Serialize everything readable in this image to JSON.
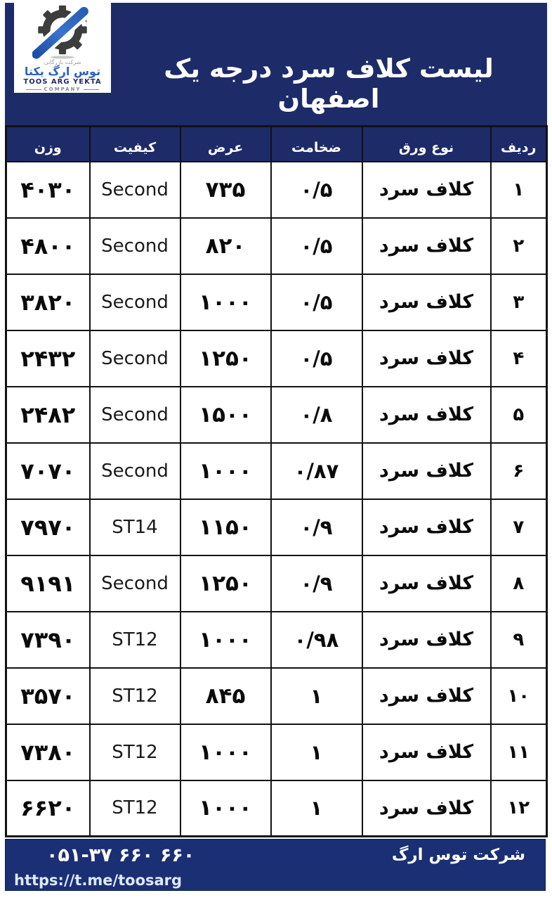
{
  "header": {
    "title": "لیست کلاف سرد درجه یک اصفهان"
  },
  "logo": {
    "line_small_top": "شرکت بازرگانی",
    "name_fa": "توس ارگ یکتا",
    "name_en": "TOOS ARG YEKTA",
    "company_label": "COMPANY"
  },
  "table": {
    "headers": [
      "ردیف",
      "نوع ورق",
      "ضخامت",
      "عرض",
      "کیفیت",
      "وزن"
    ],
    "rows": [
      {
        "radif": "۱",
        "type": "کلاف سرد",
        "thickness": "۰/۵",
        "width": "۷۳۵",
        "quality": "Second",
        "weight": "۴۰۳۰"
      },
      {
        "radif": "۲",
        "type": "کلاف سرد",
        "thickness": "۰/۵",
        "width": "۸۲۰",
        "quality": "Second",
        "weight": "۴۸۰۰"
      },
      {
        "radif": "۳",
        "type": "کلاف سرد",
        "thickness": "۰/۵",
        "width": "۱۰۰۰",
        "quality": "Second",
        "weight": "۳۸۲۰"
      },
      {
        "radif": "۴",
        "type": "کلاف سرد",
        "thickness": "۰/۵",
        "width": "۱۲۵۰",
        "quality": "Second",
        "weight": "۲۴۳۲"
      },
      {
        "radif": "۵",
        "type": "کلاف سرد",
        "thickness": "۰/۸",
        "width": "۱۵۰۰",
        "quality": "Second",
        "weight": "۲۴۸۲"
      },
      {
        "radif": "۶",
        "type": "کلاف سرد",
        "thickness": "۰/۸۷",
        "width": "۱۰۰۰",
        "quality": "Second",
        "weight": "۷۰۷۰"
      },
      {
        "radif": "۷",
        "type": "کلاف سرد",
        "thickness": "۰/۹",
        "width": "۱۱۵۰",
        "quality": "ST14",
        "weight": "۷۹۷۰"
      },
      {
        "radif": "۸",
        "type": "کلاف سرد",
        "thickness": "۰/۹",
        "width": "۱۲۵۰",
        "quality": "Second",
        "weight": "۹۱۹۱"
      },
      {
        "radif": "۹",
        "type": "کلاف سرد",
        "thickness": "۰/۹۸",
        "width": "۱۰۰۰",
        "quality": "ST12",
        "weight": "۷۳۹۰"
      },
      {
        "radif": "۱۰",
        "type": "کلاف سرد",
        "thickness": "۱",
        "width": "۸۴۵",
        "quality": "ST12",
        "weight": "۳۵۷۰"
      },
      {
        "radif": "۱۱",
        "type": "کلاف سرد",
        "thickness": "۱",
        "width": "۱۰۰۰",
        "quality": "ST12",
        "weight": "۷۳۸۰"
      },
      {
        "radif": "۱۲",
        "type": "کلاف سرد",
        "thickness": "۱",
        "width": "۱۰۰۰",
        "quality": "ST12",
        "weight": "۶۶۲۰"
      }
    ]
  },
  "footer": {
    "company": "شرکت توس ارگ",
    "phone": "۰۵۱-۳۷ ۶۶۰ ۶۶۰",
    "url": "https://t.me/toosarg"
  },
  "colors": {
    "header_navy": "#1d2b69",
    "footer_navy": "#1a2f74",
    "border_black": "#121212",
    "logo_blue": "#2b62c0",
    "title_white": "#ffffff"
  }
}
